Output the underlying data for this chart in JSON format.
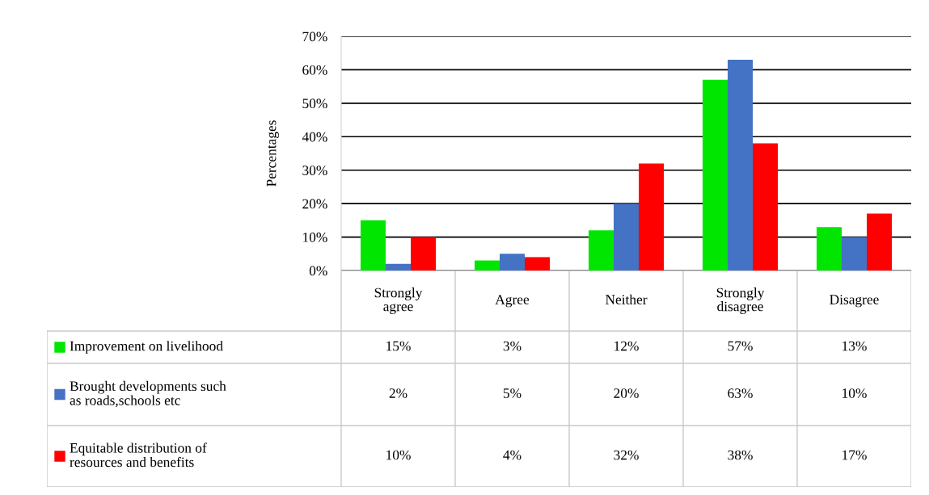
{
  "chart_data": {
    "type": "bar",
    "ylabel": "Percentages",
    "categories": [
      "Strongly agree",
      "Agree",
      "Neither",
      "Strongly disagree",
      "Disagree"
    ],
    "series": [
      {
        "name": "Improvement on livelihood",
        "color": "#00e600",
        "values": [
          15,
          3,
          12,
          57,
          13
        ],
        "value_labels": [
          "15%",
          "3%",
          "12%",
          "57%",
          "13%"
        ]
      },
      {
        "name": "Brought developments such as roads,schools etc",
        "color": "#4472c4",
        "values": [
          2,
          5,
          20,
          63,
          10
        ],
        "value_labels": [
          "2%",
          "5%",
          "20%",
          "63%",
          "10%"
        ]
      },
      {
        "name": "Equitable distribution of resources and benefits",
        "color": "#ff0000",
        "values": [
          10,
          4,
          32,
          38,
          17
        ],
        "value_labels": [
          "10%",
          "4%",
          "32%",
          "38%",
          "17%"
        ]
      }
    ],
    "ylim": [
      0,
      70
    ],
    "yticks": [
      {
        "value": 0,
        "label": "0%"
      },
      {
        "value": 10,
        "label": "10%"
      },
      {
        "value": 20,
        "label": "20%"
      },
      {
        "value": 30,
        "label": "30%"
      },
      {
        "value": 40,
        "label": "40%"
      },
      {
        "value": 50,
        "label": "50%"
      },
      {
        "value": 60,
        "label": "60%"
      },
      {
        "value": 70,
        "label": "70%"
      }
    ],
    "grid": "y",
    "legend": "bottom left"
  }
}
